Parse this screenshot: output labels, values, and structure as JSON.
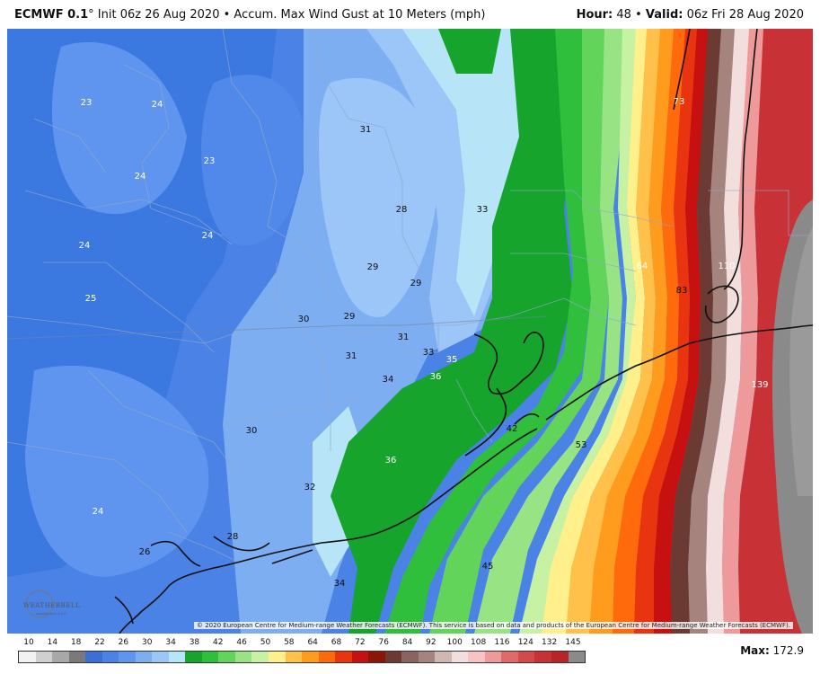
{
  "header": {
    "model": "ECMWF 0.1",
    "degree": "°",
    "init": "Init 06z 26 Aug 2020",
    "bullet": "•",
    "product": "Accum. Max Wind Gust at 10 Meters (mph)",
    "hour_label": "Hour:",
    "hour_value": "48",
    "valid_label": "Valid:",
    "valid_value": "06z Fri 28 Aug 2020"
  },
  "map": {
    "copyright": "© 2020 European Centre for Medium-range Weather Forecasts (ECMWF). This service is based on data and products of the European Centre for Medium-range Weather Forecasts (ECMWF).",
    "logo_text": "WEATHERBELL",
    "logo_sub": "Analytics LLC",
    "labels": [
      {
        "v": "23",
        "dark": false
      },
      {
        "v": "24",
        "dark": false
      },
      {
        "v": "23",
        "dark": false
      },
      {
        "v": "24",
        "dark": false
      },
      {
        "v": "24",
        "dark": false
      },
      {
        "v": "24",
        "dark": false
      },
      {
        "v": "25",
        "dark": false
      },
      {
        "v": "31",
        "dark": true
      },
      {
        "v": "28",
        "dark": true
      },
      {
        "v": "33",
        "dark": true
      },
      {
        "v": "29",
        "dark": true
      },
      {
        "v": "29",
        "dark": true
      },
      {
        "v": "30",
        "dark": true
      },
      {
        "v": "29",
        "dark": true
      },
      {
        "v": "31",
        "dark": true
      },
      {
        "v": "31",
        "dark": true
      },
      {
        "v": "33",
        "dark": true
      },
      {
        "v": "35",
        "dark": false
      },
      {
        "v": "36",
        "dark": false
      },
      {
        "v": "34",
        "dark": true
      },
      {
        "v": "30",
        "dark": true
      },
      {
        "v": "42",
        "dark": true
      },
      {
        "v": "36",
        "dark": false
      },
      {
        "v": "53",
        "dark": true
      },
      {
        "v": "32",
        "dark": true
      },
      {
        "v": "24",
        "dark": false
      },
      {
        "v": "28",
        "dark": true
      },
      {
        "v": "26",
        "dark": true
      },
      {
        "v": "45",
        "dark": true
      },
      {
        "v": "34",
        "dark": true
      },
      {
        "v": "73",
        "dark": false
      },
      {
        "v": "64",
        "dark": false
      },
      {
        "v": "110",
        "dark": false
      },
      {
        "v": "83",
        "dark": true
      },
      {
        "v": "139",
        "dark": false
      }
    ]
  },
  "legend": {
    "labels": [
      "10",
      "14",
      "18",
      "22",
      "26",
      "30",
      "34",
      "38",
      "42",
      "46",
      "50",
      "58",
      "64",
      "68",
      "72",
      "76",
      "84",
      "92",
      "100",
      "108",
      "116",
      "124",
      "132",
      "145"
    ],
    "colors": [
      "#f2f2f2",
      "#d0d0d0",
      "#a8a8a8",
      "#7a7a7a",
      "#3b6fd6",
      "#4a82e6",
      "#5f95ee",
      "#7eaef2",
      "#9cc6f7",
      "#b7e4f7",
      "#16a42c",
      "#2fbf3c",
      "#62d45a",
      "#98e485",
      "#c8f2a3",
      "#fff08c",
      "#ffc14a",
      "#ff9c1e",
      "#ff6a0d",
      "#e8350f",
      "#c71010",
      "#8c1508",
      "#6a3a33",
      "#8a6560",
      "#a6847e",
      "#cfb7b2",
      "#f2dedc",
      "#f7c3c3",
      "#ef9a9a",
      "#e06a6a",
      "#d44a4a",
      "#c83236",
      "#b82428",
      "#8a8a8a"
    ],
    "max_label": "Max:",
    "max_value": "172.9"
  }
}
